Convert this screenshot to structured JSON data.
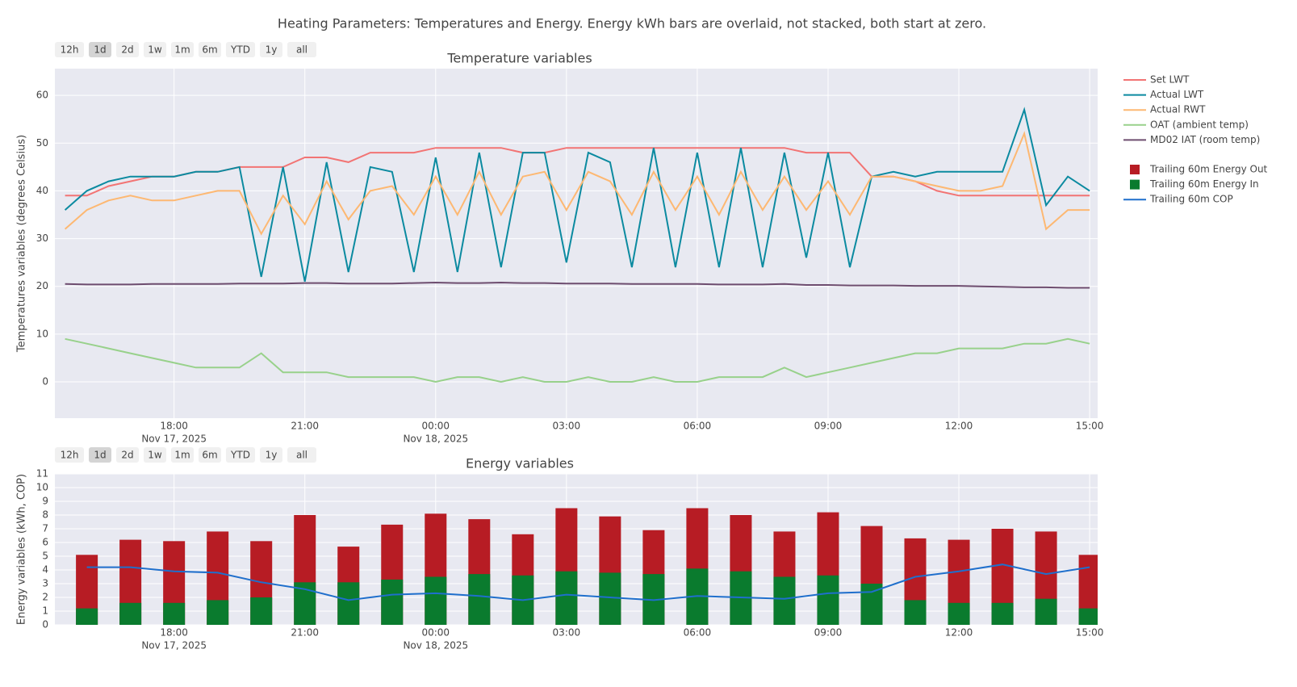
{
  "title": "Heating Parameters: Temperatures and Energy. Energy kWh bars are overlaid, not stacked, both start at zero.",
  "chart_data": [
    {
      "type": "line",
      "title": "Temperature variables",
      "y_label": "Temperatures variables (degrees Celsius)",
      "range_buttons": [
        "12h",
        "1d",
        "2d",
        "1w",
        "1m",
        "6m",
        "YTD",
        "1y",
        "all"
      ],
      "active_range_index": 1,
      "x": [
        "2025-11-17 15:30",
        "2025-11-17 16:00",
        "2025-11-17 16:30",
        "2025-11-17 17:00",
        "2025-11-17 17:30",
        "2025-11-17 18:00",
        "2025-11-17 18:30",
        "2025-11-17 19:00",
        "2025-11-17 19:30",
        "2025-11-17 20:00",
        "2025-11-17 20:30",
        "2025-11-17 21:00",
        "2025-11-17 21:30",
        "2025-11-17 22:00",
        "2025-11-17 22:30",
        "2025-11-17 23:00",
        "2025-11-17 23:30",
        "2025-11-18 00:00",
        "2025-11-18 00:30",
        "2025-11-18 01:00",
        "2025-11-18 01:30",
        "2025-11-18 02:00",
        "2025-11-18 02:30",
        "2025-11-18 03:00",
        "2025-11-18 03:30",
        "2025-11-18 04:00",
        "2025-11-18 04:30",
        "2025-11-18 05:00",
        "2025-11-18 05:30",
        "2025-11-18 06:00",
        "2025-11-18 06:30",
        "2025-11-18 07:00",
        "2025-11-18 07:30",
        "2025-11-18 08:00",
        "2025-11-18 08:30",
        "2025-11-18 09:00",
        "2025-11-18 09:30",
        "2025-11-18 10:00",
        "2025-11-18 10:30",
        "2025-11-18 11:00",
        "2025-11-18 11:30",
        "2025-11-18 12:00",
        "2025-11-18 12:30",
        "2025-11-18 13:00",
        "2025-11-18 13:30",
        "2025-11-18 14:00",
        "2025-11-18 14:30",
        "2025-11-18 15:00"
      ],
      "series": [
        {
          "name": "Set LWT",
          "color": "#f27474",
          "values": [
            39,
            39,
            41,
            42,
            43,
            43,
            44,
            44,
            45,
            45,
            45,
            47,
            47,
            46,
            48,
            48,
            48,
            49,
            49,
            49,
            49,
            48,
            48,
            49,
            49,
            49,
            49,
            49,
            49,
            49,
            49,
            49,
            49,
            49,
            48,
            48,
            48,
            43,
            43,
            42,
            40,
            39,
            39,
            39,
            39,
            39,
            39,
            39
          ]
        },
        {
          "name": "Actual LWT",
          "color": "#0b8aa0",
          "values": [
            36,
            40,
            42,
            43,
            43,
            43,
            44,
            44,
            45,
            22,
            45,
            21,
            46,
            23,
            45,
            44,
            23,
            47,
            23,
            48,
            24,
            48,
            48,
            25,
            48,
            46,
            24,
            49,
            24,
            48,
            24,
            49,
            24,
            48,
            26,
            48,
            24,
            43,
            44,
            43,
            44,
            44,
            44,
            44,
            57,
            37,
            43,
            40
          ]
        },
        {
          "name": "Actual RWT",
          "color": "#fdb872",
          "values": [
            32,
            36,
            38,
            39,
            38,
            38,
            39,
            40,
            40,
            31,
            39,
            33,
            42,
            34,
            40,
            41,
            35,
            43,
            35,
            44,
            35,
            43,
            44,
            36,
            44,
            42,
            35,
            44,
            36,
            43,
            35,
            44,
            36,
            43,
            36,
            42,
            35,
            43,
            43,
            42,
            41,
            40,
            40,
            41,
            52,
            32,
            36,
            36
          ]
        },
        {
          "name": "OAT (ambient temp)",
          "color": "#98d18b",
          "values": [
            9,
            8,
            7,
            6,
            5,
            4,
            3,
            3,
            3,
            6,
            2,
            2,
            2,
            1,
            1,
            1,
            1,
            0,
            1,
            1,
            0,
            1,
            0,
            0,
            1,
            0,
            0,
            1,
            0,
            0,
            1,
            1,
            1,
            3,
            1,
            2,
            3,
            4,
            5,
            6,
            6,
            7,
            7,
            7,
            8,
            8,
            9,
            8
          ]
        },
        {
          "name": "MD02 IAT (room temp)",
          "color": "#6e4d6f",
          "values": [
            20.5,
            20.4,
            20.4,
            20.4,
            20.5,
            20.5,
            20.5,
            20.5,
            20.6,
            20.6,
            20.6,
            20.7,
            20.7,
            20.6,
            20.6,
            20.6,
            20.7,
            20.8,
            20.7,
            20.7,
            20.8,
            20.7,
            20.7,
            20.6,
            20.6,
            20.6,
            20.5,
            20.5,
            20.5,
            20.5,
            20.4,
            20.4,
            20.4,
            20.5,
            20.3,
            20.3,
            20.2,
            20.2,
            20.2,
            20.1,
            20.1,
            20.1,
            20.0,
            19.9,
            19.8,
            19.8,
            19.7,
            19.7
          ]
        }
      ],
      "xlim": [
        "2025-11-17 15:16",
        "2025-11-18 15:11"
      ],
      "xticks": [
        {
          "value": "2025-11-17 18:00",
          "label": "18:00"
        },
        {
          "value": "2025-11-17 21:00",
          "label": "21:00"
        },
        {
          "value": "2025-11-18 00:00",
          "label": "00:00"
        },
        {
          "value": "2025-11-18 03:00",
          "label": "03:00"
        },
        {
          "value": "2025-11-18 06:00",
          "label": "06:00"
        },
        {
          "value": "2025-11-18 09:00",
          "label": "09:00"
        },
        {
          "value": "2025-11-18 12:00",
          "label": "12:00"
        },
        {
          "value": "2025-11-18 15:00",
          "label": "15:00"
        }
      ],
      "xtick_dates": [
        {
          "value": "2025-11-17 18:00",
          "label": "Nov 17, 2025"
        },
        {
          "value": "2025-11-18 00:00",
          "label": "Nov 18, 2025"
        }
      ],
      "ylim": [
        -7.6,
        65.6
      ],
      "yticks": [
        0,
        10,
        20,
        30,
        40,
        50,
        60
      ],
      "grid": true
    },
    {
      "type": "bar",
      "title": "Energy variables",
      "y_label": "Energy variables (kWh, COP)",
      "range_buttons": [
        "12h",
        "1d",
        "2d",
        "1w",
        "1m",
        "6m",
        "YTD",
        "1y",
        "all"
      ],
      "active_range_index": 1,
      "x": [
        "2025-11-17 16:00",
        "2025-11-17 17:00",
        "2025-11-17 18:00",
        "2025-11-17 19:00",
        "2025-11-17 20:00",
        "2025-11-17 21:00",
        "2025-11-17 22:00",
        "2025-11-17 23:00",
        "2025-11-18 00:00",
        "2025-11-18 01:00",
        "2025-11-18 02:00",
        "2025-11-18 03:00",
        "2025-11-18 04:00",
        "2025-11-18 05:00",
        "2025-11-18 06:00",
        "2025-11-18 07:00",
        "2025-11-18 08:00",
        "2025-11-18 09:00",
        "2025-11-18 10:00",
        "2025-11-18 11:00",
        "2025-11-18 12:00",
        "2025-11-18 13:00",
        "2025-11-18 14:00",
        "2025-11-18 15:00"
      ],
      "series": [
        {
          "name": "Trailing 60m Energy Out",
          "color": "#b71c24",
          "values": [
            5.1,
            6.2,
            6.1,
            6.8,
            6.1,
            8.0,
            5.7,
            7.3,
            8.1,
            7.7,
            6.6,
            8.5,
            7.9,
            6.9,
            8.5,
            8.0,
            6.8,
            8.2,
            7.2,
            6.3,
            6.2,
            7.0,
            6.8,
            5.1
          ]
        },
        {
          "name": "Trailing 60m Energy In",
          "color": "#0a7b2e",
          "values": [
            1.2,
            1.6,
            1.6,
            1.8,
            2.0,
            3.1,
            3.1,
            3.3,
            3.5,
            3.7,
            3.6,
            3.9,
            3.8,
            3.7,
            4.1,
            3.9,
            3.5,
            3.6,
            3.0,
            1.8,
            1.6,
            1.6,
            1.9,
            1.2
          ]
        },
        {
          "name": "Trailing 60m COP",
          "color": "#1f6fcc",
          "type": "line",
          "values": [
            4.2,
            4.2,
            3.9,
            3.8,
            3.1,
            2.6,
            1.8,
            2.2,
            2.3,
            2.1,
            1.8,
            2.2,
            2.0,
            1.8,
            2.1,
            2.0,
            1.9,
            2.3,
            2.4,
            3.5,
            3.9,
            4.4,
            3.7,
            4.2
          ]
        }
      ],
      "xlim": [
        "2025-11-17 15:16",
        "2025-11-18 15:11"
      ],
      "xticks": [
        {
          "value": "2025-11-17 18:00",
          "label": "18:00"
        },
        {
          "value": "2025-11-17 21:00",
          "label": "21:00"
        },
        {
          "value": "2025-11-18 00:00",
          "label": "00:00"
        },
        {
          "value": "2025-11-18 03:00",
          "label": "03:00"
        },
        {
          "value": "2025-11-18 06:00",
          "label": "06:00"
        },
        {
          "value": "2025-11-18 09:00",
          "label": "09:00"
        },
        {
          "value": "2025-11-18 12:00",
          "label": "12:00"
        },
        {
          "value": "2025-11-18 15:00",
          "label": "15:00"
        }
      ],
      "xtick_dates": [
        {
          "value": "2025-11-17 18:00",
          "label": "Nov 17, 2025"
        },
        {
          "value": "2025-11-18 00:00",
          "label": "Nov 18, 2025"
        }
      ],
      "ylim": [
        0,
        11
      ],
      "yticks": [
        0,
        1,
        2,
        3,
        4,
        5,
        6,
        7,
        8,
        9,
        10,
        11
      ],
      "grid": true
    }
  ]
}
